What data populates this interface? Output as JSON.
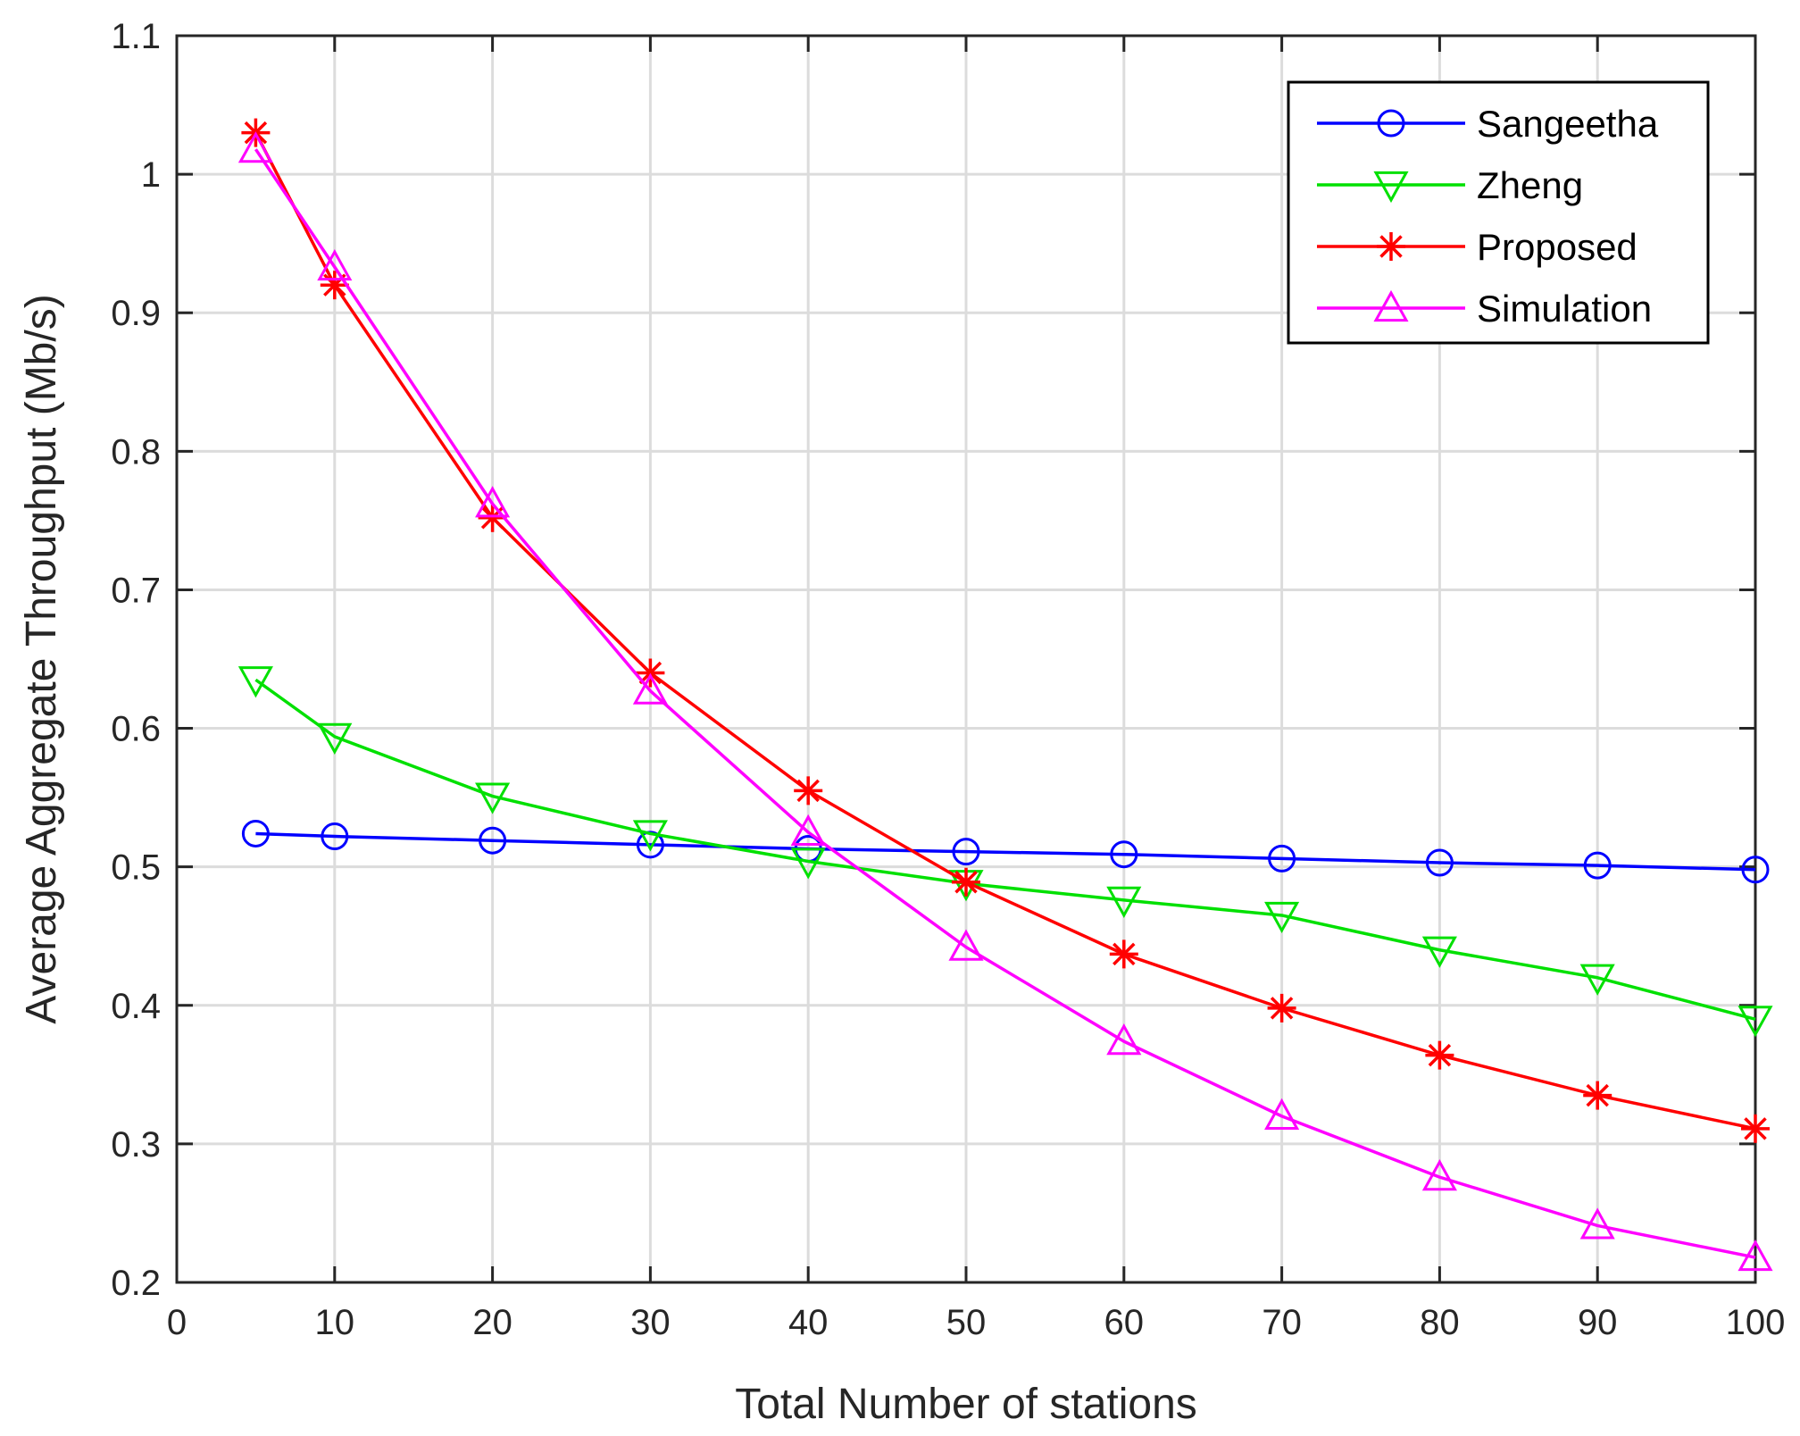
{
  "chart_data": {
    "type": "line",
    "title": "",
    "xlabel": "Total Number of stations",
    "ylabel": "Average Aggregate Throughput (Mb/s)",
    "xlim": [
      0,
      100
    ],
    "ylim": [
      0.2,
      1.1
    ],
    "xticks": [
      0,
      10,
      20,
      30,
      40,
      50,
      60,
      70,
      80,
      90,
      100
    ],
    "xtick_labels": [
      "0",
      "10",
      "20",
      "30",
      "40",
      "50",
      "60",
      "70",
      "80",
      "90",
      "100"
    ],
    "yticks": [
      0.2,
      0.3,
      0.4,
      0.5,
      0.6,
      0.7,
      0.8,
      0.9,
      1.0,
      1.1
    ],
    "ytick_labels": [
      "0.2",
      "0.3",
      "0.4",
      "0.5",
      "0.6",
      "0.7",
      "0.8",
      "0.9",
      "1",
      "1.1"
    ],
    "grid": true,
    "legend_position": "top-right",
    "x": [
      5,
      10,
      20,
      30,
      40,
      50,
      60,
      70,
      80,
      90,
      100
    ],
    "series": [
      {
        "name": "Sangeetha",
        "color": "#0000ff",
        "marker": "circle",
        "values": [
          0.524,
          0.522,
          0.519,
          0.516,
          0.513,
          0.511,
          0.509,
          0.506,
          0.503,
          0.501,
          0.498
        ]
      },
      {
        "name": "Zheng",
        "color": "#00e000",
        "marker": "triangle-down",
        "values": [
          0.635,
          0.594,
          0.551,
          0.524,
          0.504,
          0.488,
          0.476,
          0.465,
          0.44,
          0.42,
          0.39
        ]
      },
      {
        "name": "Proposed",
        "color": "#ff0000",
        "marker": "asterisk",
        "values": [
          1.03,
          0.92,
          0.752,
          0.64,
          0.555,
          0.489,
          0.437,
          0.398,
          0.364,
          0.335,
          0.311
        ]
      },
      {
        "name": "Simulation",
        "color": "#ff00ff",
        "marker": "triangle-up",
        "values": [
          1.018,
          0.933,
          0.762,
          0.627,
          0.525,
          0.442,
          0.374,
          0.32,
          0.276,
          0.241,
          0.218
        ]
      }
    ]
  }
}
